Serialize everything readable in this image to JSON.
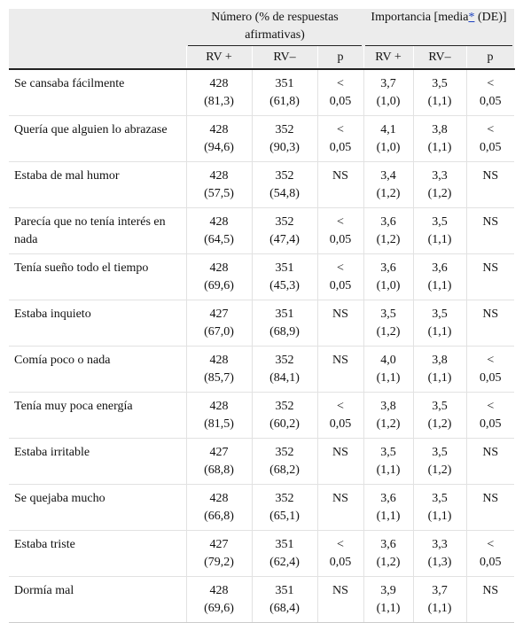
{
  "table": {
    "groups": [
      {
        "parts": [
          "Número (% de respuestas afirmativas)"
        ]
      },
      {
        "parts": [
          "Importancia [media",
          "*",
          "(DE)]"
        ]
      }
    ],
    "subheaders": [
      "RV +",
      "RV–",
      "p",
      "RV +",
      "RV–",
      "p"
    ],
    "rows": [
      {
        "label": "Se cansaba fácilmente",
        "cells": [
          [
            "428",
            "(81,3)"
          ],
          [
            "351",
            "(61,8)"
          ],
          "< 0,05",
          [
            "3,7",
            "(1,0)"
          ],
          [
            "3,5",
            "(1,1)"
          ],
          "< 0,05"
        ]
      },
      {
        "label": "Quería que alguien lo abrazase",
        "cells": [
          [
            "428",
            "(94,6)"
          ],
          [
            "352",
            "(90,3)"
          ],
          "< 0,05",
          [
            "4,1",
            "(1,0)"
          ],
          [
            "3,8",
            "(1,1)"
          ],
          "< 0,05"
        ]
      },
      {
        "label": "Estaba de mal humor",
        "cells": [
          [
            "428",
            "(57,5)"
          ],
          [
            "352",
            "(54,8)"
          ],
          "NS",
          [
            "3,4",
            "(1,2)"
          ],
          [
            "3,3",
            "(1,2)"
          ],
          "NS"
        ]
      },
      {
        "label": "Parecía que no tenía interés en nada",
        "cells": [
          [
            "428",
            "(64,5)"
          ],
          [
            "352",
            "(47,4)"
          ],
          "< 0,05",
          [
            "3,6",
            "(1,2)"
          ],
          [
            "3,5",
            "(1,1)"
          ],
          "NS"
        ]
      },
      {
        "label": "Tenía sueño todo el tiempo",
        "cells": [
          [
            "428",
            "(69,6)"
          ],
          [
            "351",
            "(45,3)"
          ],
          "< 0,05",
          [
            "3,6",
            "(1,0)"
          ],
          [
            "3,6",
            "(1,1)"
          ],
          "NS"
        ]
      },
      {
        "label": "Estaba inquieto",
        "cells": [
          [
            "427",
            "(67,0)"
          ],
          [
            "351",
            "(68,9)"
          ],
          "NS",
          [
            "3,5",
            "(1,2)"
          ],
          [
            "3,5",
            "(1,1)"
          ],
          "NS"
        ]
      },
      {
        "label": "Comía poco o nada",
        "cells": [
          [
            "428",
            "(85,7)"
          ],
          [
            "352",
            "(84,1)"
          ],
          "NS",
          [
            "4,0",
            "(1,1)"
          ],
          [
            "3,8",
            "(1,1)"
          ],
          "< 0,05"
        ]
      },
      {
        "label": "Tenía muy poca energía",
        "cells": [
          [
            "428",
            "(81,5)"
          ],
          [
            "352",
            "(60,2)"
          ],
          "< 0,05",
          [
            "3,8",
            "(1,2)"
          ],
          [
            "3,5",
            "(1,2)"
          ],
          "< 0,05"
        ]
      },
      {
        "label": "Estaba irritable",
        "cells": [
          [
            "427",
            "(68,8)"
          ],
          [
            "352",
            "(68,2)"
          ],
          "NS",
          [
            "3,5",
            "(1,1)"
          ],
          [
            "3,5",
            "(1,2)"
          ],
          "NS"
        ]
      },
      {
        "label": "Se quejaba mucho",
        "cells": [
          [
            "428",
            "(66,8)"
          ],
          [
            "352",
            "(65,1)"
          ],
          "NS",
          [
            "3,6",
            "(1,1)"
          ],
          [
            "3,5",
            "(1,1)"
          ],
          "NS"
        ]
      },
      {
        "label": "Estaba triste",
        "cells": [
          [
            "427",
            "(79,2)"
          ],
          [
            "351",
            "(62,4)"
          ],
          "< 0,05",
          [
            "3,6",
            "(1,2)"
          ],
          [
            "3,3",
            "(1,3)"
          ],
          "< 0,05"
        ]
      },
      {
        "label": "Dormía mal",
        "cells": [
          [
            "428",
            "(69,6)"
          ],
          [
            "351",
            "(68,4)"
          ],
          "NS",
          [
            "3,9",
            "(1,1)"
          ],
          [
            "3,7",
            "(1,1)"
          ],
          "NS"
        ]
      }
    ]
  }
}
